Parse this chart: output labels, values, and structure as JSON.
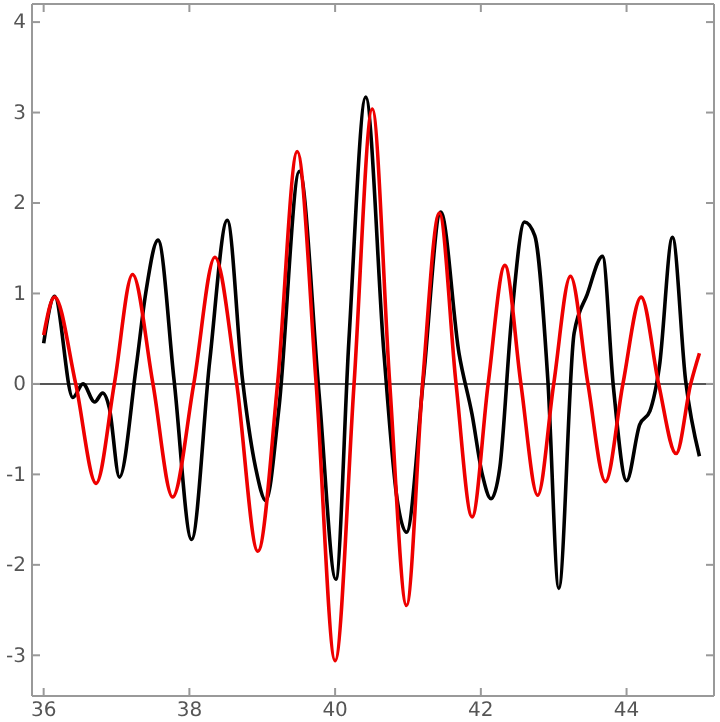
{
  "chart_data": {
    "type": "line",
    "xlim": [
      35.84,
      45.2
    ],
    "ylim": [
      -3.45,
      4.2
    ],
    "xticks": [
      36,
      38,
      40,
      42,
      44
    ],
    "yticks": [
      -3,
      -2,
      -1,
      0,
      1,
      2,
      3,
      4
    ],
    "grid": false,
    "marker": "none",
    "line_style": "solid",
    "ref_lines": [
      {
        "axis": "y",
        "value": 0,
        "color": "#555555"
      }
    ],
    "series": [
      {
        "color": "#000000",
        "x": [
          36,
          36.15,
          36.4,
          36.54,
          36.7,
          36.81,
          36.9,
          37.04,
          37.27,
          37.4,
          37.57,
          37.79,
          38.03,
          38.28,
          38.52,
          38.73,
          38.91,
          39.05,
          39.23,
          39.51,
          39.78,
          40.01,
          40.19,
          40.42,
          40.67,
          40.85,
          40.98,
          41.21,
          41.45,
          41.7,
          41.88,
          42.02,
          42.14,
          42.26,
          42.42,
          42.6,
          42.74,
          42.92,
          43.07,
          43.28,
          43.46,
          43.67,
          43.82,
          44.0,
          44.18,
          44.32,
          44.45,
          44.63,
          44.81,
          45.0
        ],
        "values": [
          0.45,
          0.97,
          -0.15,
          0.0,
          -0.2,
          -0.1,
          -0.26,
          -1.03,
          0.19,
          1.0,
          1.59,
          0.04,
          -1.72,
          0.26,
          1.81,
          0.04,
          -0.93,
          -1.29,
          -0.26,
          2.35,
          -0.11,
          -2.16,
          0.49,
          3.17,
          0.34,
          -1.27,
          -1.64,
          0.04,
          1.9,
          0.34,
          -0.34,
          -1.0,
          -1.27,
          -0.93,
          0.71,
          1.79,
          1.64,
          0.04,
          -2.26,
          0.56,
          0.99,
          1.41,
          -0.04,
          -1.07,
          -0.45,
          -0.3,
          0.19,
          1.62,
          0.04,
          -0.8
        ]
      },
      {
        "color": "#ee0000",
        "x": [
          36,
          36.15,
          36.44,
          36.72,
          36.97,
          37.22,
          37.5,
          37.77,
          38.06,
          38.35,
          38.65,
          38.94,
          39.21,
          39.48,
          39.74,
          40.0,
          40.26,
          40.51,
          40.75,
          40.98,
          41.2,
          41.43,
          41.66,
          41.88,
          42.1,
          42.33,
          42.55,
          42.78,
          43.0,
          43.23,
          43.47,
          43.71,
          43.95,
          44.2,
          44.44,
          44.68,
          44.88,
          45.0
        ],
        "values": [
          0.54,
          0.96,
          0,
          -1.1,
          0,
          1.21,
          0,
          -1.25,
          0,
          1.4,
          0,
          -1.85,
          0,
          2.57,
          0,
          -3.06,
          0,
          3.04,
          0,
          -2.45,
          0,
          1.89,
          0,
          -1.47,
          0,
          1.31,
          0,
          -1.23,
          0,
          1.19,
          0,
          -1.08,
          0,
          0.96,
          0,
          -0.77,
          0,
          0.34
        ]
      }
    ]
  }
}
